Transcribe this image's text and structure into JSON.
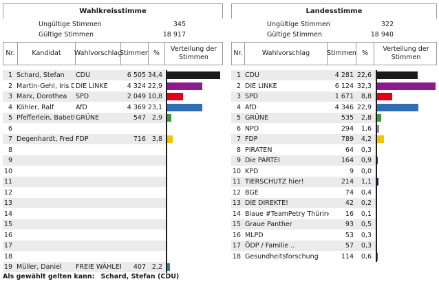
{
  "left": {
    "title": "Wahlkreisstimme",
    "invalid_label": "Ungültige Stimmen",
    "invalid_value": "345",
    "valid_label": "Gültige Stimmen",
    "valid_value": "18 917",
    "headers": {
      "nr": "Nr.",
      "kandidat": "Kandidat",
      "wahlvorschlag": "Wahlvorschlag",
      "stimmen": "Stimmen",
      "percent": "%",
      "verteilung": "Verteilung der Stimmen"
    },
    "rows": [
      {
        "nr": "1",
        "kandidat": "Schard, Stefan",
        "partei": "CDU",
        "stimmen": "6 505",
        "pct": "34,4",
        "value": 34.4,
        "color": "#1a1a1a"
      },
      {
        "nr": "2",
        "kandidat": "Martin-Gehl, Iris Dr.",
        "partei": "DIE LINKE",
        "stimmen": "4 324",
        "pct": "22,9",
        "value": 22.9,
        "color": "#8e1b8e"
      },
      {
        "nr": "3",
        "kandidat": "Marx, Dorothea",
        "partei": "SPD",
        "stimmen": "2 049",
        "pct": "10,8",
        "value": 10.8,
        "color": "#e2001a"
      },
      {
        "nr": "4",
        "kandidat": "Köhler, Ralf",
        "partei": "AfD",
        "stimmen": "4 369",
        "pct": "23,1",
        "value": 23.1,
        "color": "#2f6eb5"
      },
      {
        "nr": "5",
        "kandidat": "Pfefferlein, Babett",
        "partei": "GRÜNE",
        "stimmen": "547",
        "pct": "2,9",
        "value": 2.9,
        "color": "#3a9a3a"
      },
      {
        "nr": "6",
        "kandidat": "",
        "partei": "",
        "stimmen": "",
        "pct": "",
        "value": 0,
        "color": "#000000"
      },
      {
        "nr": "7",
        "kandidat": "Degenhardt, Fred",
        "partei": "FDP",
        "stimmen": "716",
        "pct": "3,8",
        "value": 3.8,
        "color": "#f5c400"
      },
      {
        "nr": "8",
        "kandidat": "",
        "partei": "",
        "stimmen": "",
        "pct": "",
        "value": 0,
        "color": "#000000"
      },
      {
        "nr": "9",
        "kandidat": "",
        "partei": "",
        "stimmen": "",
        "pct": "",
        "value": 0,
        "color": "#000000"
      },
      {
        "nr": "10",
        "kandidat": "",
        "partei": "",
        "stimmen": "",
        "pct": "",
        "value": 0,
        "color": "#000000"
      },
      {
        "nr": "11",
        "kandidat": "",
        "partei": "",
        "stimmen": "",
        "pct": "",
        "value": 0,
        "color": "#000000"
      },
      {
        "nr": "12",
        "kandidat": "",
        "partei": "",
        "stimmen": "",
        "pct": "",
        "value": 0,
        "color": "#000000"
      },
      {
        "nr": "13",
        "kandidat": "",
        "partei": "",
        "stimmen": "",
        "pct": "",
        "value": 0,
        "color": "#000000"
      },
      {
        "nr": "14",
        "kandidat": "",
        "partei": "",
        "stimmen": "",
        "pct": "",
        "value": 0,
        "color": "#000000"
      },
      {
        "nr": "15",
        "kandidat": "",
        "partei": "",
        "stimmen": "",
        "pct": "",
        "value": 0,
        "color": "#000000"
      },
      {
        "nr": "16",
        "kandidat": "",
        "partei": "",
        "stimmen": "",
        "pct": "",
        "value": 0,
        "color": "#000000"
      },
      {
        "nr": "17",
        "kandidat": "",
        "partei": "",
        "stimmen": "",
        "pct": "",
        "value": 0,
        "color": "#000000"
      },
      {
        "nr": "18",
        "kandidat": "",
        "partei": "",
        "stimmen": "",
        "pct": "",
        "value": 0,
        "color": "#000000"
      },
      {
        "nr": "19",
        "kandidat": "Müller, Daniel",
        "partei": "FREIE WÄHLER",
        "stimmen": "407",
        "pct": "2,2",
        "value": 2.2,
        "color": "#2a8a8a"
      }
    ]
  },
  "right": {
    "title": "Landesstimme",
    "invalid_label": "Ungültige Stimmen",
    "invalid_value": "322",
    "valid_label": "Gültige Stimmen",
    "valid_value": "18 940",
    "headers": {
      "nr": "Nr.",
      "wahlvorschlag": "Wahlvorschlag",
      "stimmen": "Stimmen",
      "percent": "%",
      "verteilung": "Verteilung der Stimmen"
    },
    "rows": [
      {
        "nr": "1",
        "partei": "CDU",
        "stimmen": "4 281",
        "pct": "22,6",
        "value": 22.6,
        "color": "#1a1a1a"
      },
      {
        "nr": "2",
        "partei": "DIE LINKE",
        "stimmen": "6 124",
        "pct": "32,3",
        "value": 32.3,
        "color": "#8e1b8e"
      },
      {
        "nr": "3",
        "partei": "SPD",
        "stimmen": "1 671",
        "pct": "8,8",
        "value": 8.8,
        "color": "#e2001a"
      },
      {
        "nr": "4",
        "partei": "AfD",
        "stimmen": "4 346",
        "pct": "22,9",
        "value": 22.9,
        "color": "#2f6eb5"
      },
      {
        "nr": "5",
        "partei": "GRÜNE",
        "stimmen": "535",
        "pct": "2,8",
        "value": 2.8,
        "color": "#3a9a3a"
      },
      {
        "nr": "6",
        "partei": "NPD",
        "stimmen": "294",
        "pct": "1,6",
        "value": 1.6,
        "color": "#8a8a8a"
      },
      {
        "nr": "7",
        "partei": "FDP",
        "stimmen": "789",
        "pct": "4,2",
        "value": 4.2,
        "color": "#f5c400"
      },
      {
        "nr": "8",
        "partei": "PIRATEN",
        "stimmen": "64",
        "pct": "0,3",
        "value": 0.3,
        "color": "#2a2a6a"
      },
      {
        "nr": "9",
        "partei": "Die PARTEI",
        "stimmen": "164",
        "pct": "0,9",
        "value": 0.9,
        "color": "#8b1a1a"
      },
      {
        "nr": "10",
        "partei": "KPD",
        "stimmen": "9",
        "pct": "0,0",
        "value": 0.0,
        "color": "#1a1a1a"
      },
      {
        "nr": "11",
        "partei": "TIERSCHUTZ hier!",
        "stimmen": "214",
        "pct": "1,1",
        "value": 1.1,
        "color": "#1a1a8a"
      },
      {
        "nr": "12",
        "partei": "BGE",
        "stimmen": "74",
        "pct": "0,4",
        "value": 0.4,
        "color": "#2a2a6a"
      },
      {
        "nr": "13",
        "partei": "DIE DIREKTE!",
        "stimmen": "42",
        "pct": "0,2",
        "value": 0.2,
        "color": "#2a2a6a"
      },
      {
        "nr": "14",
        "partei": "Blaue #TeamPetry Thüringen",
        "stimmen": "16",
        "pct": "0,1",
        "value": 0.1,
        "color": "#2a2a6a"
      },
      {
        "nr": "15",
        "partei": "Graue Panther",
        "stimmen": "93",
        "pct": "0,5",
        "value": 0.5,
        "color": "#2a2a6a"
      },
      {
        "nr": "16",
        "partei": "MLPD",
        "stimmen": "53",
        "pct": "0,3",
        "value": 0.3,
        "color": "#2a2a6a"
      },
      {
        "nr": "17",
        "partei": "ÖDP / Familie ..",
        "stimmen": "57",
        "pct": "0,3",
        "value": 0.3,
        "color": "#2a2a6a"
      },
      {
        "nr": "18",
        "partei": "Gesundheitsforschung",
        "stimmen": "114",
        "pct": "0,6",
        "value": 0.6,
        "color": "#2a6a6a"
      }
    ]
  },
  "footer": {
    "label": "Als gewählt gelten kann:",
    "candidate": "Schard, Stefan (CDU)"
  }
}
